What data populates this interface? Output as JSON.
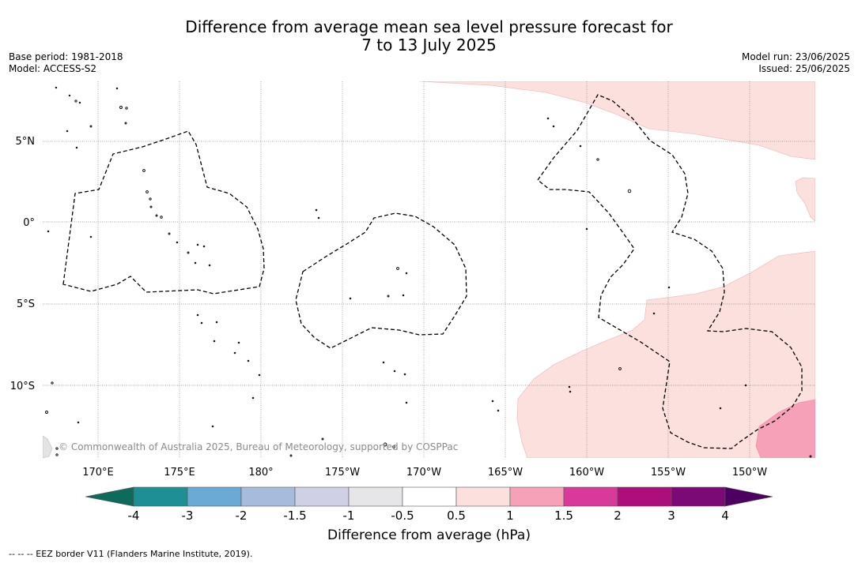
{
  "title": {
    "line1": "Difference from average mean sea level pressure forecast for",
    "line2": "7 to 13 July 2025"
  },
  "meta_left": {
    "base_period": "Base period: 1981-2018",
    "model": "Model: ACCESS-S2"
  },
  "meta_right": {
    "model_run": "Model run: 23/06/2025",
    "issued": "Issued: 25/06/2025"
  },
  "map": {
    "lon_labels": [
      "170°E",
      "175°E",
      "180°",
      "175°W",
      "170°W",
      "165°W",
      "160°W",
      "155°W",
      "150°W"
    ],
    "lat_labels": [
      "5°N",
      "0°",
      "5°S",
      "10°S"
    ],
    "copyright": "© Commonwealth of Australia 2025, Bureau of Meteorology, supported by COSPPac",
    "shading": {
      "light_pink": "#fbe0dd",
      "mid_pink": "#f7a1b8"
    }
  },
  "colorbar": {
    "tick_labels": [
      "-4",
      "-3",
      "-2",
      "-1.5",
      "-1",
      "-0.5",
      "0.5",
      "1",
      "1.5",
      "2",
      "3",
      "4"
    ],
    "colors": [
      "#0e6b5c",
      "#1f8f96",
      "#6aaad4",
      "#a7bbdd",
      "#cfcfe5",
      "#e6e6e8",
      "#ffffff",
      "#fbe0dd",
      "#f7a1b8",
      "#d8399a",
      "#ad0e7c",
      "#7b0a77",
      "#4c0061"
    ],
    "title": "Difference from average (hPa)"
  },
  "footnote": "--  --  -- EEZ border V11 (Flanders Marine Institute, 2019)."
}
